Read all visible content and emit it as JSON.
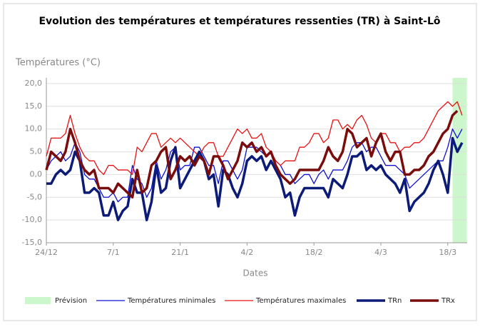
{
  "chart_data": {
    "type": "line",
    "title": "Evolution des températures et températures ressenties (TR) à Saint-Lô",
    "y_label": "Températures (°C)",
    "x_label": "Dates",
    "categories": [
      "24/12",
      null,
      null,
      null,
      null,
      null,
      null,
      null,
      null,
      null,
      null,
      null,
      null,
      null,
      "7/1",
      null,
      null,
      null,
      null,
      null,
      null,
      null,
      null,
      null,
      null,
      null,
      null,
      null,
      "21/1",
      null,
      null,
      null,
      null,
      null,
      null,
      null,
      null,
      null,
      null,
      null,
      null,
      null,
      "4/2",
      null,
      null,
      null,
      null,
      null,
      null,
      null,
      null,
      null,
      null,
      null,
      null,
      null,
      "18/2",
      null,
      null,
      null,
      null,
      null,
      null,
      null,
      null,
      null,
      null,
      null,
      null,
      null,
      "4/3",
      null,
      null,
      null,
      null,
      null,
      null,
      null,
      null,
      null,
      null,
      null,
      null,
      null,
      "18/3",
      null,
      null,
      null
    ],
    "ylim": [
      -15,
      20
    ],
    "yticks": [
      {
        "value": -15,
        "label": "-15,0"
      },
      {
        "value": -10,
        "label": "-10,0"
      },
      {
        "value": -5,
        "label": "-5,0"
      },
      {
        "value": 0,
        "label": "0,0"
      },
      {
        "value": 5,
        "label": "5,0"
      },
      {
        "value": 10,
        "label": "10,0"
      },
      {
        "value": 15,
        "label": "15,0"
      },
      {
        "value": 20,
        "label": "20,0"
      }
    ],
    "grid": true,
    "bands": [
      {
        "name": "Prévision",
        "color": "#ccf7cc",
        "start": 85,
        "end": 88
      }
    ],
    "series": [
      {
        "name": "Températures minimales",
        "color": "#1010d0",
        "width": 1.3,
        "values": [
          1,
          3,
          4,
          5,
          3,
          4,
          7,
          5,
          0,
          -1,
          -1,
          -3,
          -5,
          -5,
          -4,
          -6,
          -5,
          -5,
          2,
          -1,
          -2,
          -5,
          -3,
          3,
          -1,
          1,
          5,
          6,
          1,
          2,
          2,
          6,
          6,
          4,
          2,
          2,
          -2,
          3,
          3,
          1,
          -1,
          1,
          6,
          6,
          6,
          5,
          4,
          5,
          3,
          2,
          0,
          0,
          -2,
          -1,
          0,
          0,
          -2,
          0,
          1,
          -1,
          1,
          1,
          1,
          3,
          6,
          7,
          7,
          5,
          6,
          6,
          4,
          2,
          2,
          2,
          1,
          0,
          -3,
          -2,
          -1,
          0,
          1,
          2,
          3,
          3,
          6,
          10,
          8,
          10
        ]
      },
      {
        "name": "Températures maximales",
        "color": "#e81010",
        "width": 1.3,
        "values": [
          4,
          8,
          8,
          8,
          9,
          13,
          9,
          6,
          4,
          3,
          3,
          1,
          0,
          2,
          2,
          1,
          1,
          1,
          0,
          6,
          5,
          7,
          9,
          9,
          6,
          7,
          8,
          7,
          8,
          7,
          6,
          5,
          4,
          6,
          7,
          7,
          4,
          4,
          6,
          8,
          10,
          9,
          10,
          8,
          8,
          9,
          6,
          5,
          3,
          2,
          3,
          3,
          3,
          6,
          6,
          7,
          9,
          9,
          7,
          8,
          12,
          12,
          10,
          11,
          10,
          12,
          13,
          11,
          8,
          7,
          9,
          9,
          7,
          7,
          5,
          6,
          6,
          7,
          7,
          8,
          10,
          12,
          14,
          15,
          16,
          15,
          16,
          13
        ]
      },
      {
        "name": "TRn",
        "color": "#0c1a78",
        "width": 3.5,
        "values": [
          -2,
          -2,
          0,
          1,
          0,
          1,
          5,
          3,
          -4,
          -4,
          -3,
          -4,
          -9,
          -9,
          -6,
          -10,
          -8,
          -7,
          -1,
          -4,
          -4,
          -10,
          -6,
          2,
          -4,
          -3,
          3,
          6,
          -3,
          -1,
          1,
          3,
          5,
          3,
          -1,
          0,
          -7,
          1,
          0,
          -3,
          -5,
          -2,
          3,
          4,
          3,
          4,
          1,
          3,
          1,
          -1,
          -5,
          -4,
          -9,
          -5,
          -3,
          -3,
          -3,
          -3,
          -3,
          -5,
          -1,
          -2,
          -3,
          0,
          4,
          4,
          5,
          1,
          2,
          1,
          2,
          0,
          -1,
          -2,
          -4,
          -1,
          -8,
          -6,
          -5,
          -4,
          -2,
          1,
          3,
          0,
          -4,
          8,
          5,
          7
        ]
      },
      {
        "name": "TRx",
        "color": "#7a0c0c",
        "width": 3.5,
        "values": [
          1,
          5,
          4,
          3,
          5,
          10,
          7,
          3,
          1,
          0,
          1,
          -3,
          -3,
          -3,
          -4,
          -2,
          -3,
          -4,
          -5,
          1,
          -4,
          -3,
          2,
          3,
          5,
          6,
          -1,
          1,
          4,
          3,
          4,
          2,
          4,
          3,
          0,
          4,
          4,
          2,
          -1,
          1,
          3,
          7,
          6,
          7,
          5,
          6,
          4,
          5,
          2,
          0,
          -1,
          -2,
          -1,
          1,
          1,
          1,
          1,
          1,
          3,
          6,
          4,
          3,
          5,
          10,
          9,
          6,
          7,
          8,
          4,
          7,
          9,
          5,
          3,
          5,
          5,
          0,
          0,
          1,
          1,
          2,
          4,
          5,
          7,
          9,
          10,
          13,
          14,
          null
        ]
      }
    ]
  }
}
